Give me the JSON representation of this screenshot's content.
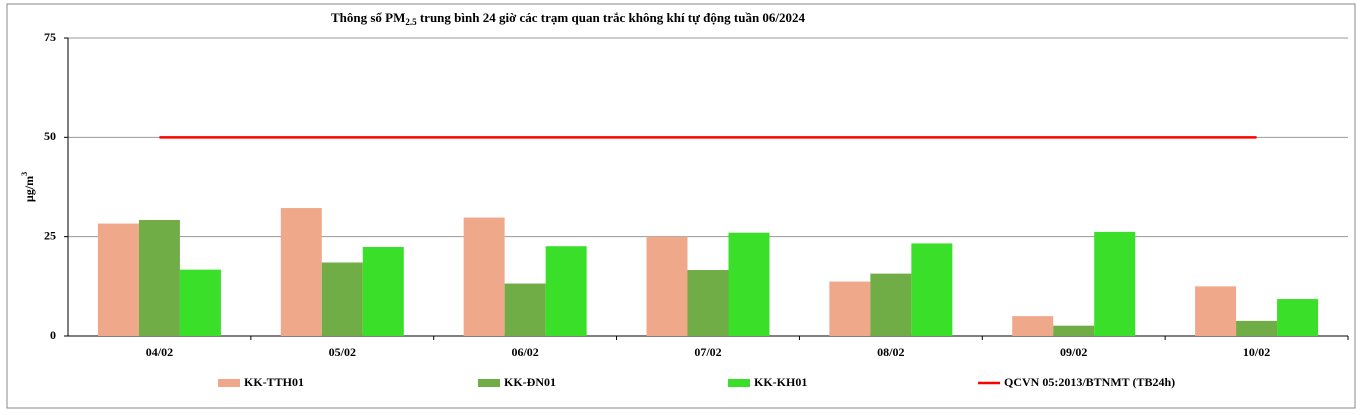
{
  "chart_data": {
    "type": "bar",
    "title": {
      "main": "Thông số PM",
      "subscript": "2.5",
      "rest": " trung bình 24 giờ các trạm quan trắc không khí tự động tuần 06/2024"
    },
    "ylabel": {
      "text": "µg/m",
      "superscript": "3"
    },
    "categories": [
      "04/02",
      "05/02",
      "06/02",
      "07/02",
      "08/02",
      "09/02",
      "10/02"
    ],
    "series": [
      {
        "name": "KK-TTH01",
        "type": "bar",
        "color": "#f0a88a",
        "values": [
          28.3,
          32.2,
          29.8,
          25.0,
          13.7,
          5.0,
          12.5
        ]
      },
      {
        "name": "KK-ĐN01",
        "type": "bar",
        "color": "#70ad47",
        "values": [
          29.2,
          18.5,
          13.2,
          16.6,
          15.7,
          2.6,
          3.8
        ]
      },
      {
        "name": "KK-KH01",
        "type": "bar",
        "color": "#3adf2a",
        "values": [
          16.7,
          22.4,
          22.6,
          26.0,
          23.3,
          26.2,
          9.3
        ]
      },
      {
        "name": "QCVN 05:2013/BTNMT (TB24h)",
        "type": "line",
        "color": "#ff0000",
        "values": [
          50,
          50,
          50,
          50,
          50,
          50,
          50
        ]
      }
    ],
    "ylim": [
      0,
      75
    ],
    "yticks": [
      0,
      25,
      50,
      75
    ],
    "grid": true,
    "legend": "bottom"
  }
}
